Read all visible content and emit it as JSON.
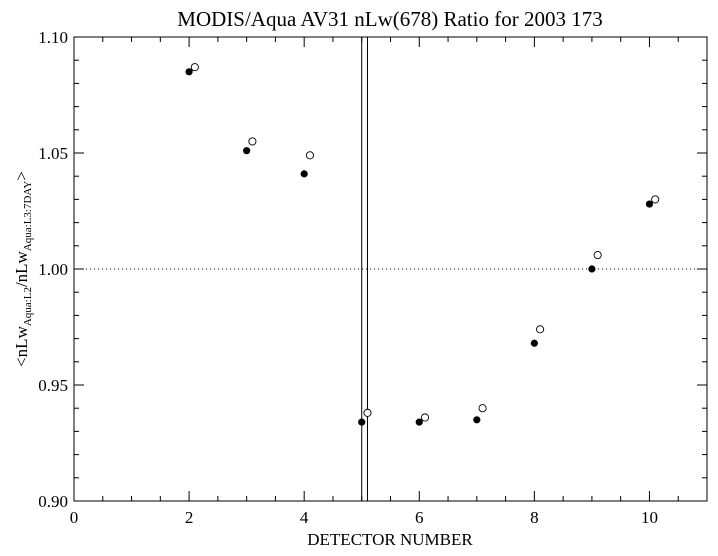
{
  "chart_data": {
    "type": "scatter",
    "title": "MODIS/Aqua AV31 nLw(678) Ratio for 2003 173",
    "xlabel": "DETECTOR NUMBER",
    "ylabel": {
      "open": "<nLw",
      "sub1": "Aqua:L2",
      "mid": "/nLw",
      "sub2": "Aqua:L3:7DAY",
      "close": ">"
    },
    "xlim": [
      0,
      11
    ],
    "ylim": [
      0.9,
      1.1
    ],
    "x_ticks": [
      0,
      2,
      4,
      6,
      8,
      10
    ],
    "x_tick_labels": [
      "0",
      "2",
      "4",
      "6",
      "8",
      "10"
    ],
    "x_minor_step": 0.5,
    "y_ticks": [
      0.9,
      0.95,
      1.0,
      1.05,
      1.1
    ],
    "y_tick_labels": [
      "0.90",
      "0.95",
      "1.00",
      "1.05",
      "1.10"
    ],
    "y_minor_step": 0.01,
    "reference_line": {
      "y": 1.0,
      "style": "dotted"
    },
    "vertical_lines": [
      5.0,
      5.1
    ],
    "series": [
      {
        "marker": "filled-circle",
        "x": [
          2,
          3,
          4,
          5,
          6,
          7,
          8,
          9,
          10
        ],
        "y": [
          1.085,
          1.051,
          1.041,
          0.934,
          0.934,
          0.935,
          0.968,
          1.0,
          1.028
        ]
      },
      {
        "marker": "open-circle",
        "x": [
          2.1,
          3.1,
          4.1,
          5.1,
          6.1,
          7.1,
          8.1,
          9.1,
          10.1
        ],
        "y": [
          1.087,
          1.055,
          1.049,
          0.938,
          0.936,
          0.94,
          0.974,
          1.006,
          1.03
        ]
      }
    ]
  }
}
